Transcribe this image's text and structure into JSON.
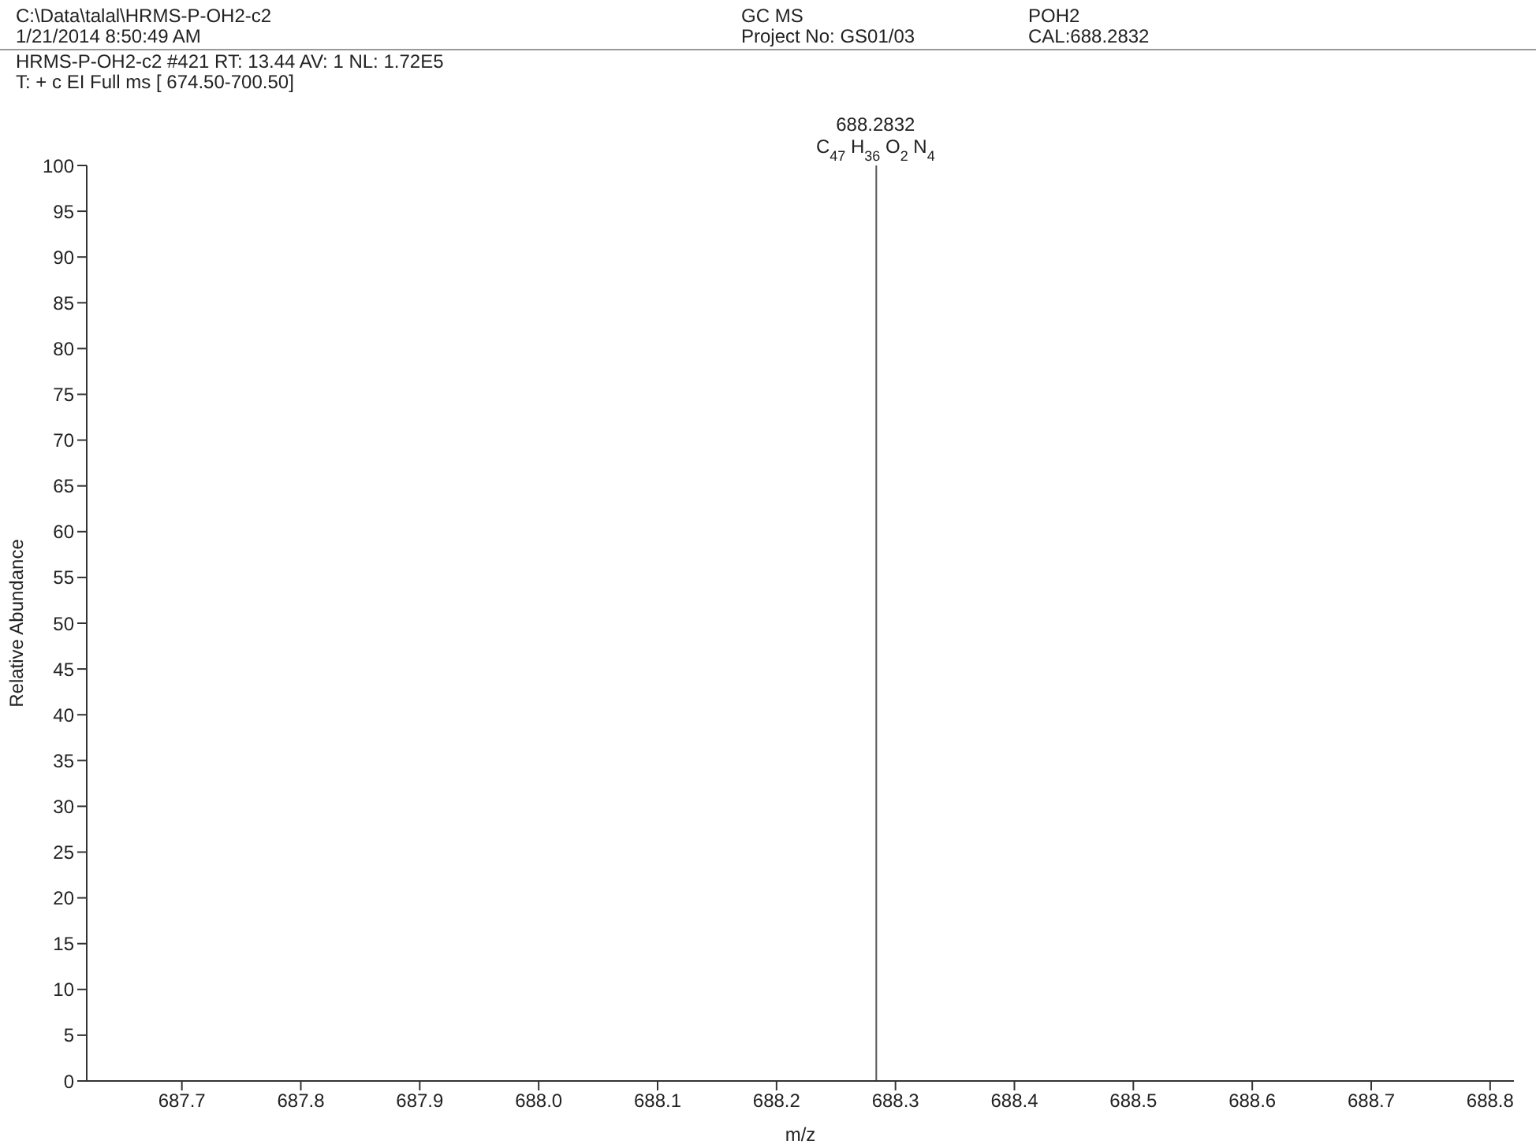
{
  "chart_data": {
    "type": "bar",
    "annotations": [
      "C:\\Data\\talal\\HRMS-P-OH2-c2",
      "1/21/2014 8:50:49 AM",
      "GC MS",
      "Project No: GS01/03",
      "POH2",
      "CAL:688.2832",
      "HRMS-P-OH2-c2 #421  RT: 13.44  AV: 1  NL: 1.72E5",
      "T: + c EI Full ms [ 674.50-700.50]",
      {
        "text": "688.2832",
        "x": 688.2832,
        "y": 100
      },
      {
        "text": "C$_{47}$ H$_{36}$ O$_{2}$ N$_{4}$",
        "x": 688.2832,
        "y": 100
      }
    ],
    "xlabel": "m/z",
    "ylabel": "Relative Abundance",
    "x": [
      688.2832
    ],
    "values": [
      100
    ],
    "color": "#555555",
    "xlim": [
      687.62,
      688.82
    ],
    "xticks": [
      {
        "value": 687.7,
        "label": "687.7"
      },
      {
        "value": 687.8,
        "label": "687.8"
      },
      {
        "value": 687.9,
        "label": "687.9"
      },
      {
        "value": 688.0,
        "label": "688.0"
      },
      {
        "value": 688.1,
        "label": "688.1"
      },
      {
        "value": 688.2,
        "label": "688.2"
      },
      {
        "value": 688.3,
        "label": "688.3"
      },
      {
        "value": 688.4,
        "label": "688.4"
      },
      {
        "value": 688.5,
        "label": "688.5"
      },
      {
        "value": 688.6,
        "label": "688.6"
      },
      {
        "value": 688.7,
        "label": "688.7"
      },
      {
        "value": 688.8,
        "label": "688.8"
      }
    ],
    "ylim": [
      0,
      100
    ],
    "yticks": [
      0,
      5,
      10,
      15,
      20,
      25,
      30,
      35,
      40,
      45,
      50,
      55,
      60,
      65,
      70,
      75,
      80,
      85,
      90,
      95,
      100
    ],
    "grid": false,
    "legend": false
  }
}
